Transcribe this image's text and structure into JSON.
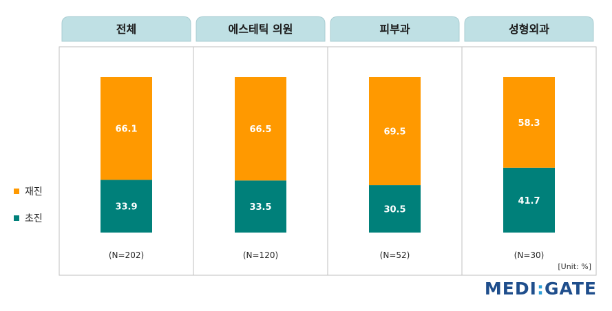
{
  "chart_data": {
    "type": "bar",
    "stacked": true,
    "categories": [
      "전체",
      "에스테틱 의원",
      "피부과",
      "성형외과"
    ],
    "sample_sizes": [
      "(N=202)",
      "(N=120)",
      "(N=52)",
      "(N=30)"
    ],
    "series": [
      {
        "name": "초진",
        "values": [
          33.9,
          33.5,
          30.5,
          41.7
        ],
        "color": "#00807a"
      },
      {
        "name": "재진",
        "values": [
          66.1,
          66.5,
          69.5,
          58.3
        ],
        "color": "#ff9900"
      }
    ],
    "ylim": [
      0,
      100
    ],
    "legend_position": "left",
    "unit": "[Unit: %]"
  },
  "brand": {
    "part1": "MEDI",
    "separator": ":",
    "part2": "GATE"
  },
  "colors": {
    "header_fill": "#bfe0e4",
    "border": "#bfbfbf",
    "label_text": "#ffffff"
  }
}
